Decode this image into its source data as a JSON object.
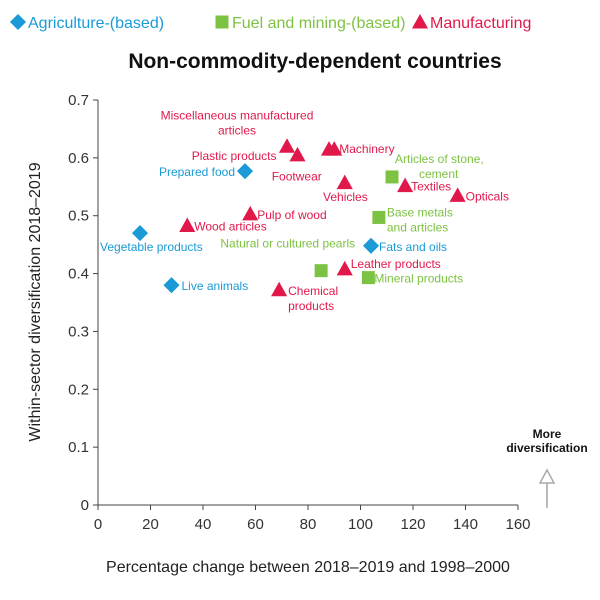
{
  "chart_data": {
    "type": "scatter",
    "title": "Non-commodity-dependent countries",
    "xlabel": "Percentage change between 2018–2019 and 1998–2000",
    "ylabel": "Within-sector diversification 2018–2019",
    "xlim": [
      0,
      160
    ],
    "ylim": [
      0,
      0.7
    ],
    "xticks": [
      "0",
      "20",
      "40",
      "60",
      "80",
      "100",
      "120",
      "140",
      "160"
    ],
    "yticks": [
      "0",
      "0.1",
      "0.2",
      "0.3",
      "0.4",
      "0.5",
      "0.6",
      "0.7"
    ],
    "grid": false,
    "legend_position": "top",
    "annotation": [
      "More",
      "diversification"
    ],
    "series": [
      {
        "name": "Agriculture-(based)",
        "marker": "diamond",
        "color": "#1a9bd7",
        "points": [
          {
            "x": 16,
            "y": 0.47,
            "label": [
              "Vegetable products"
            ]
          },
          {
            "x": 28,
            "y": 0.38,
            "label": [
              "Live animals"
            ]
          },
          {
            "x": 56,
            "y": 0.577,
            "label": [
              "Prepared food"
            ]
          },
          {
            "x": 104,
            "y": 0.448,
            "label": [
              "Fats and oils"
            ]
          }
        ]
      },
      {
        "name": "Fuel and mining-(based)",
        "marker": "square",
        "color": "#7dc242",
        "points": [
          {
            "x": 85,
            "y": 0.405,
            "label": [
              "Natural or cultured pearls"
            ]
          },
          {
            "x": 103,
            "y": 0.393,
            "label": [
              "Mineral products"
            ]
          },
          {
            "x": 107,
            "y": 0.497,
            "label": [
              "Base metals",
              "and articles"
            ]
          },
          {
            "x": 112,
            "y": 0.567,
            "label": [
              "Articles of stone,",
              "cement"
            ]
          }
        ]
      },
      {
        "name": "Manufacturing",
        "marker": "triangle",
        "color": "#e1194b",
        "points": [
          {
            "x": 34,
            "y": 0.483,
            "label": [
              "Wood articles"
            ]
          },
          {
            "x": 58,
            "y": 0.503,
            "label": [
              "Pulp of wood"
            ]
          },
          {
            "x": 69,
            "y": 0.372,
            "label": [
              "Chemical",
              "products"
            ]
          },
          {
            "x": 72,
            "y": 0.62,
            "label": [
              "Miscellaneous manufactured",
              "articles"
            ]
          },
          {
            "x": 76,
            "y": 0.605,
            "label": [
              "Plastic products"
            ]
          },
          {
            "x": 88,
            "y": 0.615,
            "label": [
              ""
            ]
          },
          {
            "x": 90,
            "y": 0.615,
            "label": [
              "Machinery"
            ]
          },
          {
            "x": 94,
            "y": 0.557,
            "label": [
              "Footwear"
            ]
          },
          {
            "x": 94,
            "y": 0.408,
            "label": [
              "Leather products"
            ]
          },
          {
            "x": 117,
            "y": 0.552,
            "label": [
              "Textiles"
            ]
          },
          {
            "x": 137,
            "y": 0.535,
            "label": [
              "Opticals"
            ]
          }
        ]
      }
    ],
    "extra_labels": [
      {
        "series": 2,
        "text": [
          "Vehicles"
        ]
      }
    ]
  }
}
